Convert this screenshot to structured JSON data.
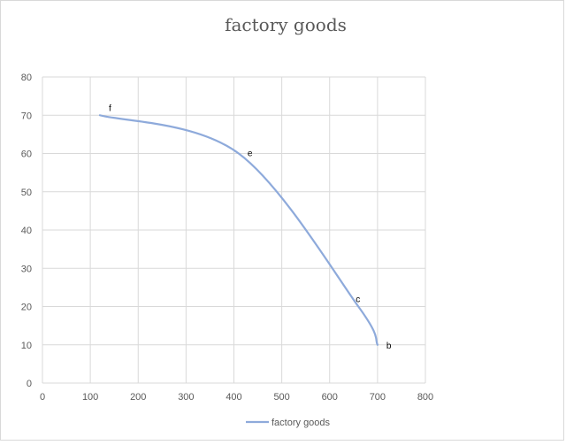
{
  "chart_data": {
    "type": "line",
    "title": "factory goods",
    "xlim": [
      0,
      800
    ],
    "ylim": [
      0,
      80
    ],
    "xticks": [
      0,
      100,
      200,
      300,
      400,
      500,
      600,
      700,
      800
    ],
    "yticks": [
      0,
      10,
      20,
      30,
      40,
      50,
      60,
      70,
      80
    ],
    "grid": true,
    "legend_position": "bottom",
    "colors": {
      "series": "#8eaadb",
      "grid": "#d9d9d9",
      "text": "#595959"
    },
    "series": [
      {
        "name": "factory goods",
        "points": [
          {
            "x": 120,
            "y": 70,
            "label": "f"
          },
          {
            "x": 410,
            "y": 60,
            "label": "e"
          },
          {
            "x": 660,
            "y": 20,
            "label": "c"
          },
          {
            "x": 700,
            "y": 10,
            "label": "b"
          }
        ]
      }
    ]
  }
}
